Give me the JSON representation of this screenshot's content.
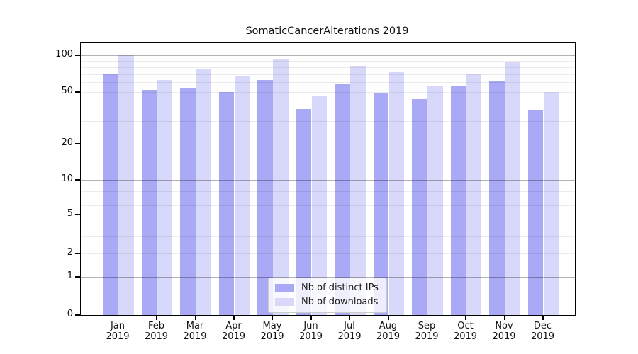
{
  "chart_data": {
    "type": "bar",
    "title": "SomaticCancerAlterations 2019",
    "months": [
      "Jan",
      "Feb",
      "Mar",
      "Apr",
      "May",
      "Jun",
      "Jul",
      "Aug",
      "Sep",
      "Oct",
      "Nov",
      "Dec"
    ],
    "year": "2019",
    "categories": [
      "Jan 2019",
      "Feb 2019",
      "Mar 2019",
      "Apr 2019",
      "May 2019",
      "Jun 2019",
      "Jul 2019",
      "Aug 2019",
      "Sep 2019",
      "Oct 2019",
      "Nov 2019",
      "Dec 2019"
    ],
    "series": [
      {
        "name": "Nb of distinct IPs",
        "color": "#a9a9f6",
        "values": [
          70,
          52,
          54,
          50,
          63,
          37,
          59,
          49,
          44,
          56,
          62,
          36
        ]
      },
      {
        "name": "Nb of downloads",
        "color": "#d8d8fa",
        "values": [
          100,
          63,
          77,
          68,
          93,
          47,
          82,
          73,
          56,
          70,
          89,
          50
        ]
      }
    ],
    "y_axis": {
      "scale": "log-like",
      "ticks": [
        0,
        1,
        2,
        5,
        10,
        20,
        50,
        100
      ],
      "range": [
        0,
        100
      ]
    },
    "gridlines": {
      "dark": [
        1,
        10,
        100
      ],
      "faint": [
        2,
        3,
        4,
        5,
        6,
        7,
        8,
        9,
        20,
        30,
        40,
        50,
        60,
        70,
        80,
        90
      ]
    },
    "legend": {
      "position": "lower-center"
    },
    "xlabel": "",
    "ylabel": ""
  }
}
